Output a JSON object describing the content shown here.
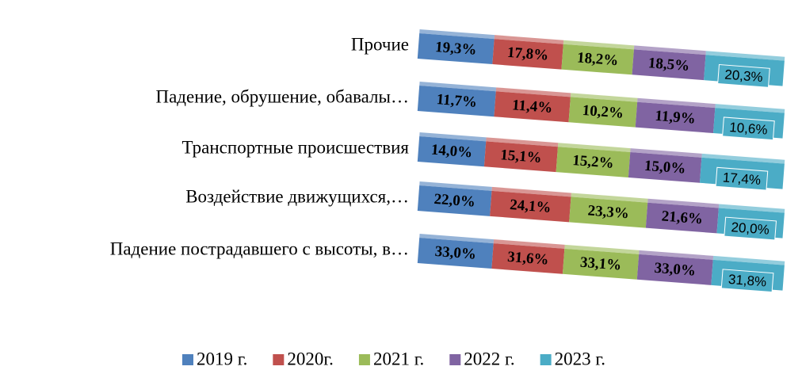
{
  "chart_data": {
    "type": "bar",
    "orientation": "horizontal",
    "stacking": "percent",
    "categories": [
      "Прочие",
      "Падение, обрушение, обавалы…",
      "Транспортные происшествия",
      "Воздействие движущихся,…",
      "Падение пострадавшего с высоты, в…"
    ],
    "series": [
      {
        "name": "2019 г.",
        "color": "#4f81bd",
        "values": [
          19.3,
          11.7,
          14.0,
          22.0,
          33.0
        ],
        "value_labels": [
          "19,3%",
          "11,7%",
          "14,0%",
          "22,0%",
          "33,0%"
        ]
      },
      {
        "name": "2020г.",
        "color": "#c0504d",
        "values": [
          17.8,
          11.4,
          15.1,
          24.1,
          31.6
        ],
        "value_labels": [
          "17,8%",
          "11,4%",
          "15,1%",
          "24,1%",
          "31,6%"
        ]
      },
      {
        "name": "2021 г.",
        "color": "#9bbb59",
        "values": [
          18.2,
          10.2,
          15.2,
          23.3,
          33.1
        ],
        "value_labels": [
          "18,2%",
          "10,2%",
          "15,2%",
          "23,3%",
          "33,1%"
        ]
      },
      {
        "name": "2022 г.",
        "color": "#8064a2",
        "values": [
          18.5,
          11.9,
          15.0,
          21.6,
          33.0
        ],
        "value_labels": [
          "18,5%",
          "11,9%",
          "15,0%",
          "21,6%",
          "33,0%"
        ]
      },
      {
        "name": "2023 г.",
        "color": "#4bacc6",
        "values": [
          20.3,
          10.6,
          17.4,
          20.0,
          31.8
        ],
        "value_labels": [
          "20,3%",
          "10,6%",
          "17,4%",
          "20,0%",
          "31,8%"
        ]
      }
    ],
    "legend": "bottom"
  }
}
